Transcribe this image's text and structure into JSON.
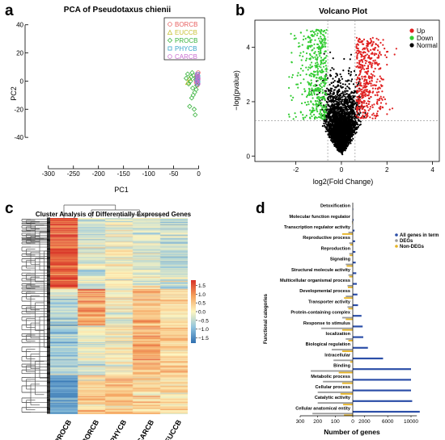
{
  "panels": {
    "a": {
      "letter": "a"
    },
    "b": {
      "letter": "b"
    },
    "c": {
      "letter": "c"
    },
    "d": {
      "letter": "d"
    }
  },
  "chart_data": [
    {
      "panel": "a",
      "type": "scatter",
      "title": "PCA of Pseudotaxus chienii",
      "xlabel": "PC1",
      "ylabel": "PC2",
      "xlim": [
        -340,
        12
      ],
      "ylim": [
        -60,
        45
      ],
      "xticks": [
        -300,
        -250,
        -200,
        -150,
        -100,
        -50,
        0
      ],
      "yticks": [
        -40,
        -20,
        0,
        20,
        40
      ],
      "grid": false,
      "legend_position": "top-right",
      "series": [
        {
          "name": "BORCB",
          "color": "#e86060",
          "marker": "circle",
          "x": [
            -3,
            -4,
            -2,
            -5,
            -1,
            -3,
            -2,
            -4,
            -1,
            -3,
            -2,
            -5
          ],
          "y": [
            3,
            1,
            5,
            -1,
            2,
            4,
            -2,
            0,
            6,
            -3,
            1,
            3
          ]
        },
        {
          "name": "EUCCB",
          "color": "#c9c23a",
          "marker": "triangle",
          "x": [
            -18,
            -22
          ],
          "y": [
            2,
            -1
          ]
        },
        {
          "name": "PROCB",
          "color": "#39b33e",
          "marker": "diamond",
          "x": [
            -25,
            -20,
            -15,
            -12,
            -10,
            -8,
            -6,
            -4,
            -14,
            -18,
            -9,
            -7,
            -22,
            -11,
            -5,
            -16,
            -13
          ],
          "y": [
            2,
            -2,
            3,
            -5,
            4,
            -8,
            1,
            -3,
            -12,
            -18,
            -20,
            -24,
            5,
            -10,
            -6,
            0,
            6
          ]
        },
        {
          "name": "PHYCB",
          "color": "#39a5c9",
          "marker": "square",
          "x": [
            -2,
            -3,
            -1,
            -2,
            -4,
            -1,
            -3,
            -2
          ],
          "y": [
            2,
            4,
            0,
            -2,
            1,
            3,
            -1,
            5
          ]
        },
        {
          "name": "CARCB",
          "color": "#c96ed1",
          "marker": "circle",
          "x": [
            -1,
            -2,
            -3,
            -1,
            -2,
            -4,
            -1,
            -3
          ],
          "y": [
            1,
            3,
            -1,
            -2,
            4,
            0,
            2,
            5
          ]
        }
      ]
    },
    {
      "panel": "b",
      "type": "scatter",
      "title": "Volcano Plot",
      "xlabel": "log2(Fold Change)",
      "ylabel": "−log(pvalue)",
      "xlim": [
        -3.8,
        4.3
      ],
      "ylim": [
        -0.2,
        5.0
      ],
      "xticks": [
        -2,
        0,
        2,
        4
      ],
      "yticks": [
        0,
        2,
        4
      ],
      "grid": false,
      "legend_position": "top-right",
      "thresholds": {
        "fold_change": [
          -0.6,
          0.6
        ],
        "pvalue_line": 1.3
      },
      "series": [
        {
          "name": "Up",
          "color": "#e02020"
        },
        {
          "name": "Down",
          "color": "#33cc33"
        },
        {
          "name": "Normal",
          "color": "#000000"
        }
      ]
    },
    {
      "panel": "c",
      "type": "heatmap",
      "title": "Cluster Analysis of Differentially Expressed Genes",
      "columns": [
        "PROCB",
        "BORCB",
        "PHYCB",
        "CARCB",
        "EUCCB"
      ],
      "color_scale": {
        "min": -1.8,
        "max": 1.8,
        "ticks": [
          1.5,
          1.0,
          0.5,
          0.0,
          -0.5,
          -1.0,
          -1.5
        ],
        "tick_labels": [
          "1.5",
          "1.0",
          "0.5",
          "0.0",
          "−0.5",
          "−1.0",
          "−1.5"
        ],
        "colors": [
          "#2f6fb0",
          "#8fc3de",
          "#fdf6c0",
          "#f5a15c",
          "#d73027"
        ]
      }
    },
    {
      "panel": "d",
      "type": "bar",
      "orientation": "horizontal",
      "xlabel": "Number of genes",
      "ylabel": "Functional categories",
      "xticks_left": [
        300,
        200,
        100,
        0
      ],
      "xticks_right": [
        2000,
        6000,
        10000
      ],
      "legend_position": "top-right",
      "categories": [
        "Detoxification",
        "Molecular function regulator",
        "Transcription regulator activity",
        "Reproductive process",
        "Reproduction",
        "Signaling",
        "Structural molecule activity",
        "Multicellular organismal process",
        "Developmental process",
        "Transporter activity",
        "Protein-containing complex",
        "Response to stimulus",
        "localization",
        "Biological regulation",
        "Intracellular",
        "Binding",
        "Metabolic process",
        "Cellular process",
        "Catalytic activity",
        "Cellular anatomical entity"
      ],
      "series": [
        {
          "name": "All genes in term",
          "color": "#2b4ea8",
          "values": [
            20,
            150,
            300,
            400,
            450,
            500,
            600,
            700,
            800,
            900,
            1500,
            1700,
            1800,
            2600,
            5200,
            10000,
            10000,
            10000,
            10200,
            11500
          ]
        },
        {
          "name": "DEGs",
          "color": "#9a9a9a",
          "values": [
            0,
            5,
            25,
            20,
            20,
            40,
            25,
            30,
            40,
            30,
            60,
            180,
            40,
            120,
            110,
            240,
            170,
            200,
            200,
            230
          ]
        },
        {
          "name": "Non-DEGs",
          "color": "#e6b324",
          "values": [
            0,
            3,
            60,
            15,
            18,
            35,
            20,
            28,
            50,
            25,
            40,
            60,
            25,
            60,
            15,
            80,
            60,
            70,
            55,
            50
          ]
        }
      ]
    }
  ]
}
